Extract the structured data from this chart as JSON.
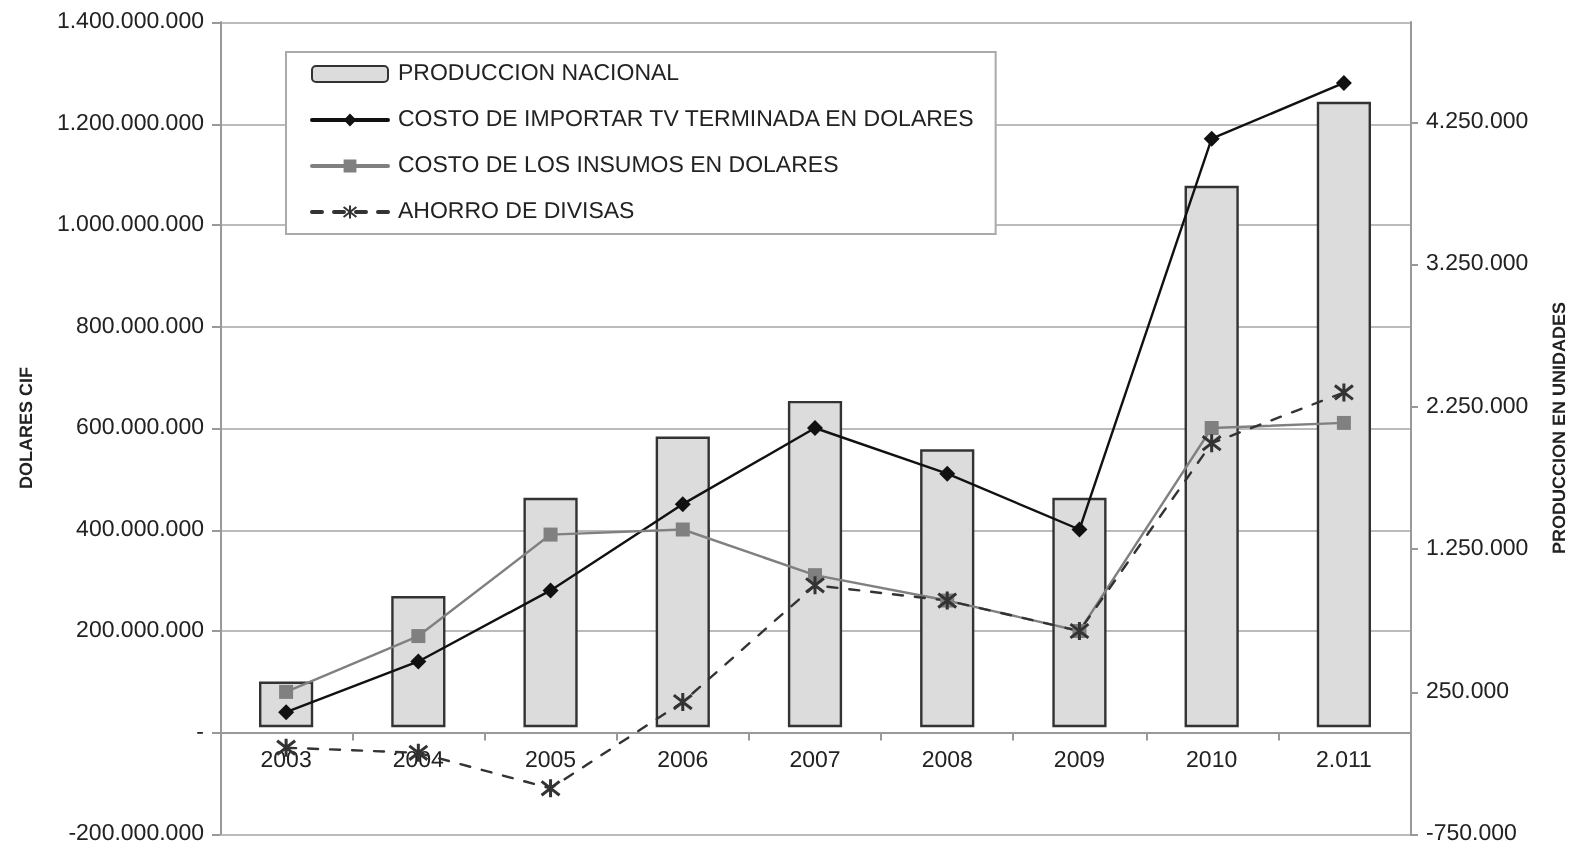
{
  "chart_data": {
    "type": "bar",
    "categories": [
      "2003",
      "2004",
      "2005",
      "2006",
      "2007",
      "2008",
      "2009",
      "2010",
      "2.011"
    ],
    "ylabel": "DOLARES CIF",
    "y2label": "PRODUCCION EN UNIDADES",
    "ylim": [
      -200000000,
      1400000000
    ],
    "yticks": [
      {
        "value": -200000000,
        "label": "-200.000.000"
      },
      {
        "value": 0,
        "label": "-"
      },
      {
        "value": 200000000,
        "label": "200.000.000"
      },
      {
        "value": 400000000,
        "label": "400.000.000"
      },
      {
        "value": 600000000,
        "label": "600.000.000"
      },
      {
        "value": 800000000,
        "label": "800.000.000"
      },
      {
        "value": 1000000000,
        "label": "1.000.000.000"
      },
      {
        "value": 1200000000,
        "label": "1.200.000.000"
      },
      {
        "value": 1400000000,
        "label": "1.400.000.000"
      }
    ],
    "y2lim": [
      -750000,
      4950000
    ],
    "y2ticks": [
      {
        "value": -750000,
        "label": "-750.000"
      },
      {
        "value": 250000,
        "label": "250.000"
      },
      {
        "value": 1250000,
        "label": "1.250.000"
      },
      {
        "value": 2250000,
        "label": "2.250.000"
      },
      {
        "value": 3250000,
        "label": "3.250.000"
      },
      {
        "value": 4250000,
        "label": "4.250.000"
      }
    ],
    "grid": "y",
    "legend": "top left",
    "series": [
      {
        "name": "PRODUCCION NACIONAL",
        "axis": "y2",
        "color": "#dcdcdc",
        "values": [
          320000,
          920000,
          1610000,
          2040000,
          2290000,
          1950000,
          1610000,
          3800000,
          4390000
        ]
      },
      {
        "name": "COSTO DE IMPORTAR TV TERMINADA EN DOLARES",
        "type": "line",
        "color": "#111111",
        "marker": "diamond",
        "line_style": "solid",
        "values": [
          40000000,
          140000000,
          280000000,
          450000000,
          600000000,
          510000000,
          400000000,
          1170000000,
          1280000000
        ]
      },
      {
        "name": "COSTO DE LOS INSUMOS EN DOLARES",
        "type": "line",
        "color": "#808080",
        "marker": "square",
        "line_style": "solid",
        "values": [
          80000000,
          190000000,
          390000000,
          400000000,
          310000000,
          260000000,
          200000000,
          600000000,
          610000000
        ]
      },
      {
        "name": "AHORRO DE DIVISAS",
        "type": "line",
        "color": "#333333",
        "marker": "cross",
        "line_style": "dashed",
        "values": [
          -30000000,
          -40000000,
          -110000000,
          60000000,
          290000000,
          260000000,
          200000000,
          570000000,
          670000000
        ]
      }
    ]
  }
}
